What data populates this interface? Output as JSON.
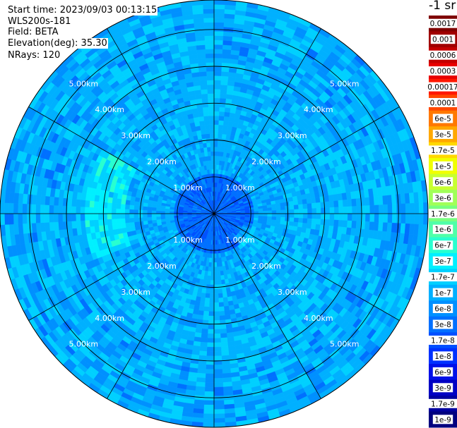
{
  "info": {
    "start_time": "Start time: 2023/09/03 00:13:15",
    "station": "WLS200s-181",
    "field": "Field: BETA",
    "elevation": "Elevation(deg): 35.30",
    "nrays": "NRays: 120"
  },
  "colorbar": {
    "unit": "-1 sr",
    "ticks": [
      "0.0017",
      "0.001",
      "0.0006",
      "0.0003",
      "0.00017",
      "0.0001",
      "6e-5",
      "3e-5",
      "1.7e-5",
      "1e-5",
      "6e-6",
      "3e-6",
      "1.7e-6",
      "1e-6",
      "6e-7",
      "3e-7",
      "1.7e-7",
      "1e-7",
      "6e-8",
      "3e-8",
      "1.7e-8",
      "1e-8",
      "6e-9",
      "3e-9",
      "1.7e-9",
      "1e-9"
    ],
    "colors": [
      "#7f0000",
      "#a00000",
      "#c40000",
      "#e80000",
      "#ff1800",
      "#ff4800",
      "#ff7800",
      "#ffa800",
      "#ffd800",
      "#f0ff00",
      "#c8ff30",
      "#a0ff58",
      "#78ff80",
      "#50ffa8",
      "#28ffd0",
      "#00f0ff",
      "#00d0ff",
      "#00b0ff",
      "#0090ff",
      "#0070ff",
      "#0050ff",
      "#0030ff",
      "#0010e8",
      "#0000c4",
      "#0000a0",
      "#00007f"
    ]
  },
  "chart_data": {
    "type": "heatmap",
    "projection": "polar plan position indicator",
    "range_rings_km": [
      1,
      2,
      3,
      4,
      5
    ],
    "range_labels": [
      "1.00km",
      "2.00km",
      "3.00km",
      "4.00km",
      "5.00km"
    ],
    "max_range_km": 5.8,
    "azimuth_lines_deg": [
      0,
      30,
      60,
      90,
      120,
      150,
      180,
      210,
      240,
      270,
      300,
      330
    ],
    "nrays": 120,
    "typical_value_range": [
      "1.7e-8",
      "6e-8"
    ],
    "near_range_value_range": [
      "1e-8",
      "3e-8"
    ],
    "enhanced_patch_value": "1.7e-7"
  }
}
